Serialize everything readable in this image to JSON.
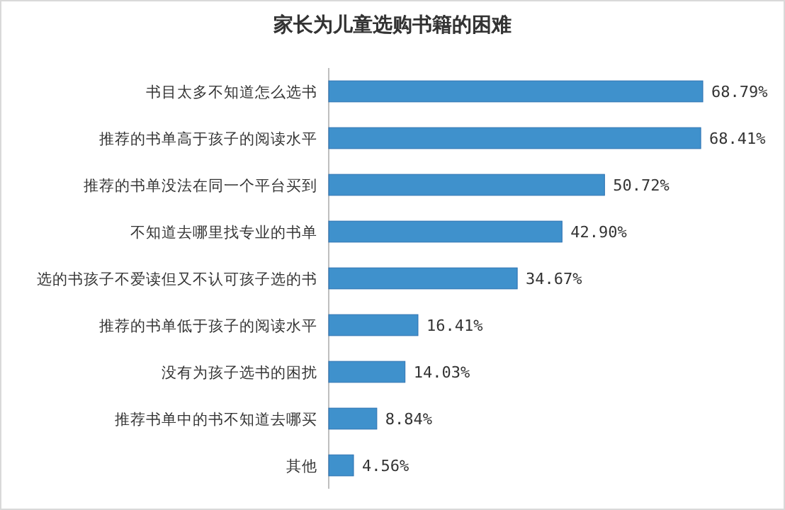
{
  "chart_data": {
    "type": "bar",
    "orientation": "horizontal",
    "title": "家长为儿童选购书籍的困难",
    "categories": [
      "书目太多不知道怎么选书",
      "推荐的书单高于孩子的阅读水平",
      "推荐的书单没法在同一个平台买到",
      "不知道去哪里找专业的书单",
      "选的书孩子不爱读但又不认可孩子选的书",
      "推荐的书单低于孩子的阅读水平",
      "没有为孩子选书的困扰",
      "推荐书单中的书不知道去哪买",
      "其他"
    ],
    "values": [
      68.79,
      68.41,
      50.72,
      42.9,
      34.67,
      16.41,
      14.03,
      8.84,
      4.56
    ],
    "value_labels": [
      "68.79%",
      "68.41%",
      "50.72%",
      "42.90%",
      "34.67%",
      "16.41%",
      "14.03%",
      "8.84%",
      "4.56%"
    ],
    "color": "#3f91cc"
  }
}
